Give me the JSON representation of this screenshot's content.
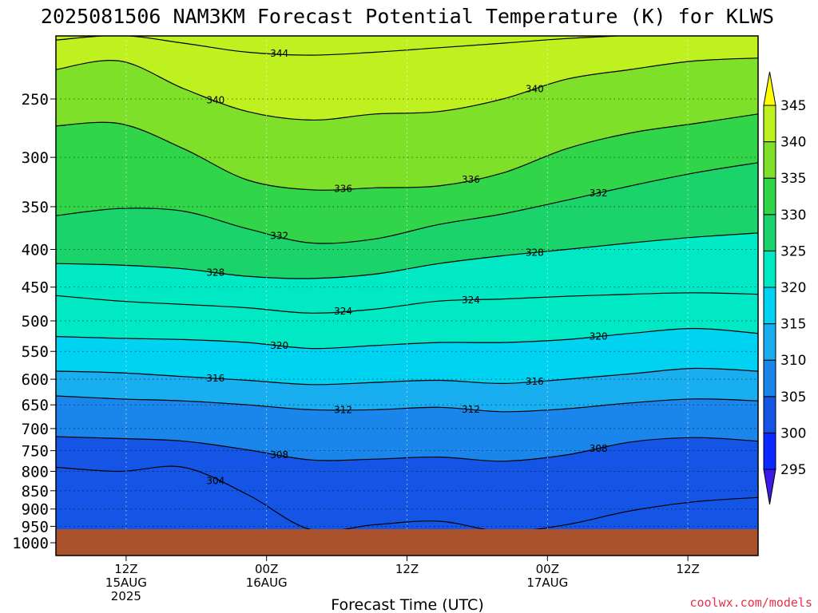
{
  "chart_data": {
    "type": "heatmap",
    "title": "2025081506 NAM3KM Forecast Potential Temperature (K) for KLWS",
    "xlabel": "Forecast Time (UTC)",
    "ylabel": "",
    "y_scale": "log",
    "y_reversed": true,
    "y_ticks": [
      250,
      300,
      350,
      400,
      450,
      500,
      550,
      600,
      650,
      700,
      750,
      800,
      850,
      900,
      950,
      1000
    ],
    "y_tick_labels": [
      "250",
      "300",
      "350",
      "400",
      "450",
      "500",
      "550",
      "600",
      "650",
      "700",
      "750",
      "800",
      "850",
      "900",
      "950",
      "1000"
    ],
    "x_ticks": [
      {
        "hours": 6,
        "lines": [
          "12Z",
          "15AUG",
          "2025"
        ]
      },
      {
        "hours": 18,
        "lines": [
          "00Z",
          "16AUG"
        ]
      },
      {
        "hours": 30,
        "lines": [
          "12Z"
        ]
      },
      {
        "hours": 42,
        "lines": [
          "00Z",
          "17AUG"
        ]
      },
      {
        "hours": 54,
        "lines": [
          "12Z"
        ]
      }
    ],
    "x_range_hours": [
      0,
      60
    ],
    "grid": true,
    "colorbar": {
      "levels": [
        295,
        300,
        305,
        310,
        315,
        320,
        325,
        330,
        335,
        340,
        345
      ],
      "labels": [
        "295",
        "300",
        "305",
        "310",
        "315",
        "320",
        "325",
        "330",
        "335",
        "340",
        "345"
      ],
      "colors": [
        "#3a1be8",
        "#0a28ff",
        "#1555e6",
        "#1a86ec",
        "#19aef0",
        "#00d2f2",
        "#00e8c4",
        "#1ad36b",
        "#30d54a",
        "#7fe02a",
        "#bff020",
        "#ffff00"
      ]
    },
    "contours": [
      {
        "value": 304,
        "label": "304",
        "y": [
          790,
          800,
          790,
          860,
          960,
          945,
          935,
          965,
          945,
          905,
          880,
          868
        ]
      },
      {
        "value": 308,
        "label": "308",
        "y": [
          718,
          722,
          728,
          748,
          772,
          770,
          765,
          775,
          760,
          730,
          720,
          728
        ]
      },
      {
        "value": 312,
        "label": "312",
        "y": [
          632,
          638,
          642,
          650,
          660,
          660,
          655,
          664,
          658,
          646,
          638,
          642
        ]
      },
      {
        "value": 316,
        "label": "316",
        "y": [
          585,
          588,
          595,
          602,
          610,
          606,
          602,
          608,
          600,
          590,
          580,
          585
        ]
      },
      {
        "value": 320,
        "label": "320",
        "y": [
          525,
          528,
          530,
          535,
          545,
          540,
          535,
          535,
          530,
          520,
          512,
          520
        ]
      },
      {
        "value": 324,
        "label": "324",
        "y": [
          462,
          470,
          475,
          480,
          488,
          482,
          470,
          467,
          463,
          460,
          458,
          460
        ]
      },
      {
        "value": 328,
        "label": "328",
        "y": [
          418,
          420,
          425,
          435,
          438,
          432,
          418,
          408,
          400,
          392,
          385,
          380
        ]
      },
      {
        "value": 332,
        "label": "332",
        "y": [
          360,
          352,
          355,
          375,
          392,
          387,
          370,
          358,
          343,
          328,
          315,
          305
        ]
      },
      {
        "value": 336,
        "label": "336",
        "y": [
          272,
          270,
          292,
          322,
          332,
          330,
          328,
          315,
          292,
          278,
          270,
          262
        ]
      },
      {
        "value": 340,
        "label": "340",
        "y": [
          228,
          222,
          242,
          260,
          267,
          262,
          260,
          250,
          235,
          228,
          222,
          220
        ]
      },
      {
        "value": 344,
        "label": "344",
        "y": [
          208,
          205,
          210,
          216,
          218,
          216,
          213,
          210,
          207,
          205,
          204,
          204
        ]
      }
    ],
    "surface": "ground"
  },
  "credit": "coolwx.com/models"
}
